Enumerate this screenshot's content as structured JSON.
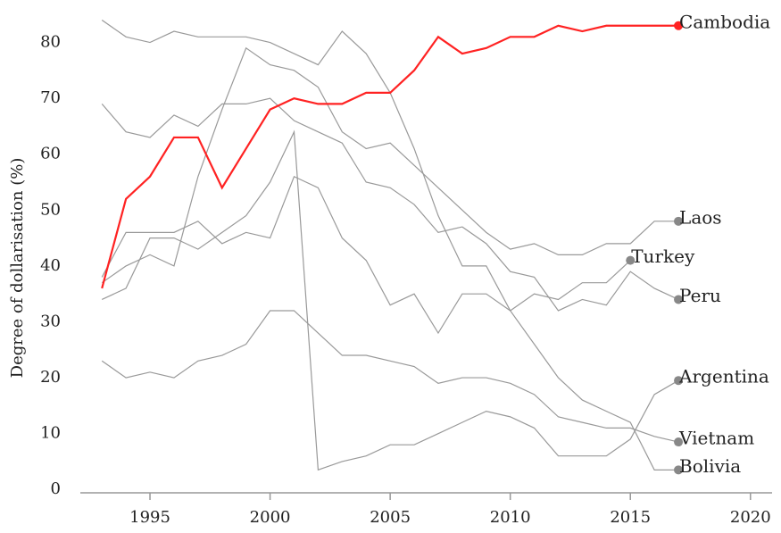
{
  "chart_data": {
    "type": "line",
    "ylabel": "Degree of dollarisation (%)",
    "x": [
      1993,
      1994,
      1995,
      1996,
      1997,
      1998,
      1999,
      2000,
      2001,
      2002,
      2003,
      2004,
      2005,
      2006,
      2007,
      2008,
      2009,
      2010,
      2011,
      2012,
      2013,
      2014,
      2015,
      2016,
      2017
    ],
    "series": [
      {
        "name": "Cambodia",
        "color": "#ff2222",
        "values": [
          36,
          52,
          56,
          63,
          63,
          54,
          61,
          68,
          70,
          69,
          69,
          71,
          71,
          75,
          81,
          78,
          79,
          81,
          81,
          83,
          82,
          83,
          83,
          83,
          83
        ]
      },
      {
        "name": "Laos",
        "color": "#999999",
        "values": [
          37,
          40,
          42,
          40,
          56,
          68,
          79,
          76,
          75,
          72,
          64,
          61,
          62,
          58,
          54,
          50,
          46,
          43,
          44,
          42,
          42,
          44,
          44,
          48,
          48
        ]
      },
      {
        "name": "Turkey",
        "color": "#999999",
        "values": [
          38,
          46,
          46,
          46,
          48,
          44,
          46,
          45,
          56,
          54,
          45,
          41,
          33,
          35,
          28,
          35,
          35,
          32,
          35,
          34,
          37,
          37,
          41,
          null,
          null
        ]
      },
      {
        "name": "Peru",
        "color": "#999999",
        "values": [
          69,
          64,
          63,
          67,
          65,
          69,
          69,
          70,
          66,
          64,
          62,
          55,
          54,
          51,
          46,
          47,
          44,
          39,
          38,
          32,
          34,
          33,
          39,
          36,
          34
        ]
      },
      {
        "name": "Argentina",
        "color": "#999999",
        "values": [
          34,
          36,
          45,
          45,
          43,
          46,
          49,
          55,
          64,
          3.5,
          5,
          6,
          8,
          8,
          10,
          12,
          14,
          13,
          11,
          6,
          6,
          6,
          9,
          17,
          19.5
        ]
      },
      {
        "name": "Vietnam",
        "color": "#999999",
        "values": [
          23,
          20,
          21,
          20,
          23,
          24,
          26,
          32,
          32,
          28,
          24,
          24,
          23,
          22,
          19,
          20,
          20,
          19,
          17,
          13,
          12,
          11,
          11,
          9.5,
          8.5
        ]
      },
      {
        "name": "Bolivia",
        "color": "#999999",
        "values": [
          84,
          81,
          80,
          82,
          81,
          81,
          81,
          80,
          78,
          76,
          82,
          78,
          71,
          61,
          49,
          40,
          40,
          32,
          26,
          20,
          16,
          14,
          12,
          3.5,
          3.5
        ]
      }
    ],
    "xlim": [
      1992.1,
      2020.9
    ],
    "xticks": [
      1995,
      2000,
      2005,
      2010,
      2015,
      2020
    ],
    "ylim": [
      -0.6,
      86
    ],
    "yticks": [
      0,
      10,
      20,
      30,
      40,
      50,
      60,
      70,
      80
    ]
  }
}
